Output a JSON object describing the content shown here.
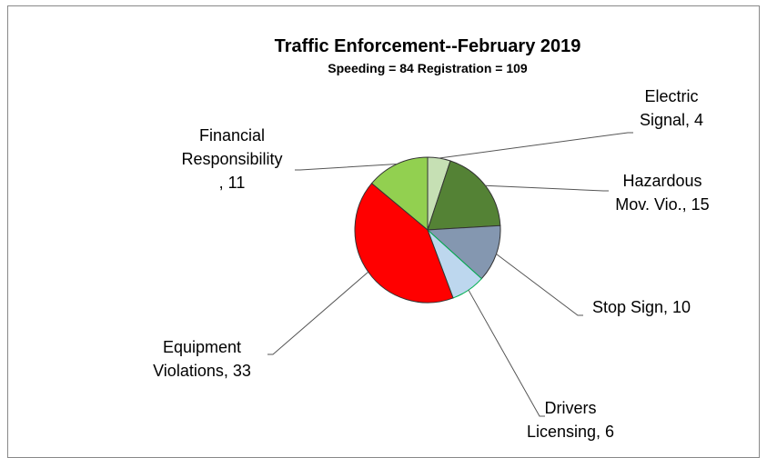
{
  "chart_data": {
    "type": "pie",
    "title": "Traffic Enforcement--February 2019",
    "subtitle": "Speeding = 84  Registration = 109",
    "values": [
      4,
      15,
      10,
      6,
      33,
      11
    ],
    "value_labels": [
      "Electric\nSignal, 4",
      "Hazardous\nMov. Vio., 15",
      "Stop Sign, 10",
      "Drivers\nLicensing, 6",
      "Equipment\nViolations, 33",
      "Financial\nResponsibility\n, 11"
    ],
    "colors": [
      "#c6e0b4",
      "#548235",
      "#8497b0",
      "#bdd7ee",
      "#ff0000",
      "#92d050"
    ]
  }
}
